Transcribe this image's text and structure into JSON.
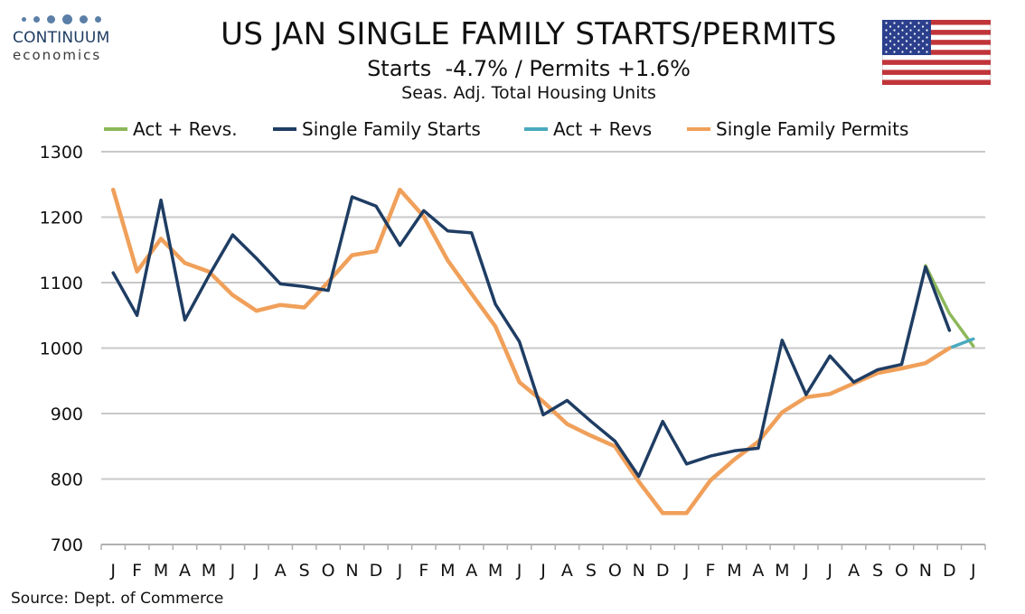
{
  "logo": {
    "name": "CONTINUUM",
    "sub": "economics"
  },
  "source": "Source: Dept. of Commerce",
  "colors": {
    "starts": "#1f3d63",
    "starts_revs": "#8db85a",
    "permits": "#f0a05a",
    "permits_revs": "#4aaabf",
    "grid": "#c8c8c8",
    "flag_red": "#c0353a",
    "flag_blue": "#2b3f8c"
  },
  "chart_data": {
    "type": "line",
    "title": "US JAN SINGLE FAMILY STARTS/PERMITS",
    "subtitle": "Starts  -4.7% / Permits +1.6%",
    "subtitle2": "Seas. Adj. Total Housing Units",
    "xlabel": "",
    "ylabel": "",
    "ylim": [
      700,
      1300
    ],
    "yticks": [
      "700",
      "800",
      "900",
      "1000",
      "1100",
      "1200",
      "1300"
    ],
    "categories": [
      "J",
      "F",
      "M",
      "A",
      "M",
      "J",
      "J",
      "A",
      "S",
      "O",
      "N",
      "D",
      "J",
      "F",
      "M",
      "A",
      "M",
      "J",
      "J",
      "A",
      "S",
      "O",
      "N",
      "D",
      "J",
      "F",
      "M",
      "A",
      "M",
      "J",
      "J",
      "A",
      "S",
      "O",
      "N",
      "D",
      "J"
    ],
    "grid": "horizontal",
    "legend": "top",
    "legend_entries": [
      "Act + Revs.",
      "Single Family Starts",
      "Act + Revs",
      "Single Family Permits"
    ],
    "series": [
      {
        "name": "Single Family Starts",
        "color_key": "starts",
        "values": [
          1115,
          1050,
          1226,
          1043,
          1110,
          1173,
          1137,
          1098,
          1094,
          1088,
          1231,
          1217,
          1157,
          1210,
          1179,
          1176,
          1067,
          1010,
          898,
          920,
          888,
          858,
          804,
          888,
          823,
          835,
          843,
          847,
          1012,
          929,
          988,
          948,
          967,
          975,
          1124,
          1027,
          null
        ]
      },
      {
        "name": "Act + Revs.",
        "color_key": "starts_revs",
        "values": [
          null,
          null,
          null,
          null,
          null,
          null,
          null,
          null,
          null,
          null,
          null,
          null,
          null,
          null,
          null,
          null,
          null,
          null,
          null,
          null,
          null,
          null,
          null,
          null,
          null,
          null,
          null,
          null,
          null,
          null,
          null,
          null,
          null,
          null,
          1126,
          1053,
          1003
        ]
      },
      {
        "name": "Single Family Permits",
        "color_key": "permits",
        "values": [
          1242,
          1117,
          1167,
          1130,
          1117,
          1081,
          1057,
          1066,
          1062,
          1101,
          1142,
          1148,
          1242,
          1201,
          1134,
          1083,
          1033,
          948,
          918,
          884,
          866,
          850,
          796,
          748,
          748,
          798,
          830,
          857,
          902,
          925,
          930,
          946,
          962,
          969,
          977,
          1000,
          null
        ]
      },
      {
        "name": "Act + Revs",
        "color_key": "permits_revs",
        "values": [
          null,
          null,
          null,
          null,
          null,
          null,
          null,
          null,
          null,
          null,
          null,
          null,
          null,
          null,
          null,
          null,
          null,
          null,
          null,
          null,
          null,
          null,
          null,
          null,
          null,
          null,
          null,
          null,
          null,
          null,
          null,
          null,
          null,
          null,
          null,
          1000,
          1014
        ]
      }
    ]
  }
}
